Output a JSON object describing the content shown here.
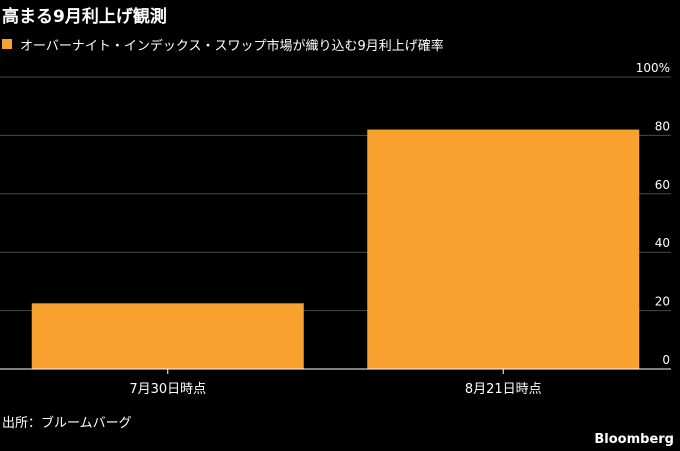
{
  "chart_data": {
    "type": "bar",
    "title": "高まる9月利上げ観測",
    "categories": [
      "7月30日時点",
      "8月21日時点"
    ],
    "series": [
      {
        "name": "オーバーナイト・インデックス・スワップ市場が織り込む9月利上げ確率",
        "values": [
          22.5,
          82
        ],
        "color": "#f9a12e"
      }
    ],
    "y_ticks": [
      "0",
      "20",
      "40",
      "60",
      "80",
      "100%"
    ],
    "y_tick_values": [
      0,
      20,
      40,
      60,
      80,
      100
    ],
    "ylim": [
      0,
      100
    ],
    "y_axis_position": "right",
    "grid": true,
    "legend_position": "top-left"
  },
  "footer": {
    "source": "出所：ブルームバーグ",
    "brand": "Bloomberg"
  },
  "colors": {
    "background": "#000000",
    "bar": "#f9a12e",
    "grid": "#4a4a4a",
    "text": "#ffffff"
  }
}
